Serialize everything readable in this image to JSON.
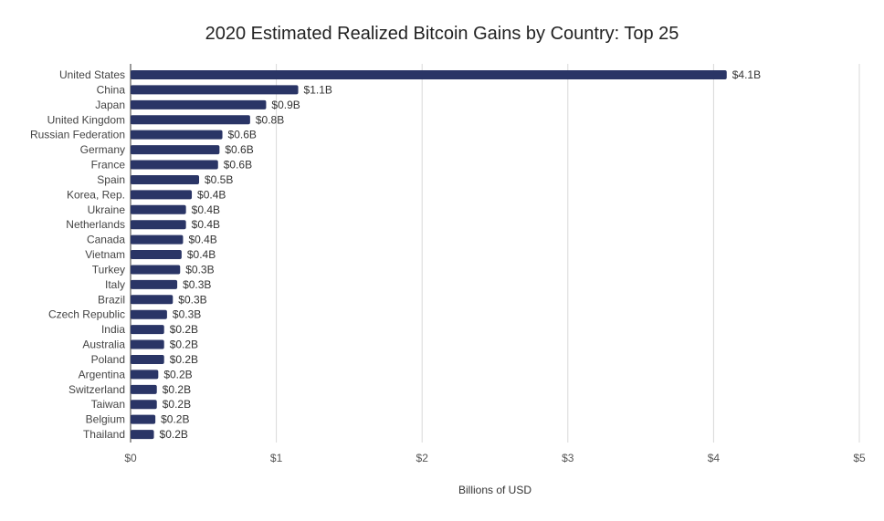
{
  "chart_data": {
    "type": "bar",
    "orientation": "horizontal",
    "title": "2020 Estimated Realized Bitcoin Gains by Country: Top 25",
    "xlabel": "Billions of USD",
    "ylabel": "",
    "xlim": [
      0,
      5
    ],
    "x_ticks": [
      "$0",
      "$1",
      "$2",
      "$3",
      "$4",
      "$5"
    ],
    "grid": true,
    "bar_color": "#2a3566",
    "categories": [
      "United States",
      "China",
      "Japan",
      "United Kingdom",
      "Russian Federation",
      "Germany",
      "France",
      "Spain",
      "Korea, Rep.",
      "Ukraine",
      "Netherlands",
      "Canada",
      "Vietnam",
      "Turkey",
      "Italy",
      "Brazil",
      "Czech Republic",
      "India",
      "Australia",
      "Poland",
      "Argentina",
      "Switzerland",
      "Taiwan",
      "Belgium",
      "Thailand"
    ],
    "values": [
      4.09,
      1.15,
      0.93,
      0.82,
      0.63,
      0.61,
      0.6,
      0.47,
      0.42,
      0.38,
      0.38,
      0.36,
      0.35,
      0.34,
      0.32,
      0.29,
      0.25,
      0.23,
      0.23,
      0.23,
      0.19,
      0.18,
      0.18,
      0.17,
      0.16
    ],
    "value_labels": [
      "$4.1B",
      "$1.1B",
      "$0.9B",
      "$0.8B",
      "$0.6B",
      "$0.6B",
      "$0.6B",
      "$0.5B",
      "$0.4B",
      "$0.4B",
      "$0.4B",
      "$0.4B",
      "$0.4B",
      "$0.3B",
      "$0.3B",
      "$0.3B",
      "$0.3B",
      "$0.2B",
      "$0.2B",
      "$0.2B",
      "$0.2B",
      "$0.2B",
      "$0.2B",
      "$0.2B",
      "$0.2B"
    ]
  }
}
